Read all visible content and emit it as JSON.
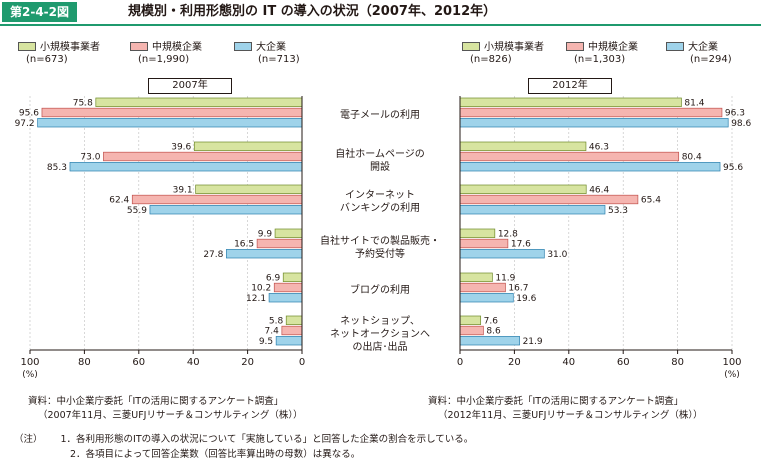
{
  "header": {
    "badge": "第2-4-2図",
    "title": "規模別・利用形態別の IT の導入の状況（2007年、2012年）"
  },
  "colors": {
    "small": "#d7e4a0",
    "medium": "#f5b5b0",
    "large": "#9fd3ea",
    "accent": "#1f9a6e"
  },
  "legend_2007": [
    {
      "label": "小規模事業者",
      "n": "(n=673)"
    },
    {
      "label": "中規模企業",
      "n": "(n=1,990)"
    },
    {
      "label": "大企業",
      "n": "(n=713)"
    }
  ],
  "legend_2012": [
    {
      "label": "小規模事業者",
      "n": "(n=826)"
    },
    {
      "label": "中規模企業",
      "n": "(n=1,303)"
    },
    {
      "label": "大企業",
      "n": "(n=294)"
    }
  ],
  "categories": [
    [
      "電子メールの利用"
    ],
    [
      "自社ホームページの",
      "開設"
    ],
    [
      "インターネット",
      "バンキングの利用"
    ],
    [
      "自社サイトでの製品販売・",
      "予約受付等"
    ],
    [
      "ブログの利用"
    ],
    [
      "ネットショップ、",
      "ネットオークションへ",
      "の出店･出品"
    ]
  ],
  "chart_data": [
    {
      "type": "bar",
      "orientation": "horizontal",
      "title": "2007年",
      "direction": "right-to-left",
      "categories": [
        "電子メールの利用",
        "自社ホームページの開設",
        "インターネットバンキングの利用",
        "自社サイトでの製品販売・予約受付等",
        "ブログの利用",
        "ネットショップ、ネットオークションへの出店･出品"
      ],
      "series": [
        {
          "name": "小規模事業者",
          "values": [
            75.8,
            39.6,
            39.1,
            9.9,
            6.9,
            5.8
          ]
        },
        {
          "name": "中規模企業",
          "values": [
            95.6,
            73.0,
            62.4,
            16.5,
            10.2,
            7.4
          ]
        },
        {
          "name": "大企業",
          "values": [
            97.2,
            85.3,
            55.9,
            27.8,
            12.1,
            9.5
          ]
        }
      ],
      "xlim": [
        0,
        100
      ],
      "ticks": [
        "100",
        "80",
        "60",
        "40",
        "20",
        "0"
      ],
      "unit": "(%)"
    },
    {
      "type": "bar",
      "orientation": "horizontal",
      "title": "2012年",
      "direction": "left-to-right",
      "categories": [
        "電子メールの利用",
        "自社ホームページの開設",
        "インターネットバンキングの利用",
        "自社サイトでの製品販売・予約受付等",
        "ブログの利用",
        "ネットショップ、ネットオークションへの出店･出品"
      ],
      "series": [
        {
          "name": "小規模事業者",
          "values": [
            81.4,
            46.3,
            46.4,
            12.8,
            11.9,
            7.6
          ]
        },
        {
          "name": "中規模企業",
          "values": [
            96.3,
            80.4,
            65.4,
            17.6,
            16.7,
            8.6
          ]
        },
        {
          "name": "大企業",
          "values": [
            98.6,
            95.6,
            53.3,
            31.0,
            19.6,
            21.9
          ]
        }
      ],
      "xlim": [
        0,
        100
      ],
      "ticks": [
        "0",
        "20",
        "40",
        "60",
        "80",
        "100"
      ],
      "unit": "(%)"
    }
  ],
  "sources": {
    "left_line1": "資料：中小企業庁委託「ITの活用に関するアンケート調査」",
    "left_line2": "（2007年11月、三菱UFJリサーチ＆コンサルティング（株））",
    "right_line1": "資料：中小企業庁委託「ITの活用に関するアンケート調査」",
    "right_line2": "（2012年11月、三菱UFJリサーチ＆コンサルティング（株））"
  },
  "notes": {
    "label": "（注）",
    "line1": "1．各利用形態のITの導入の状況について「実施している」と回答した企業の割合を示している。",
    "line2": "2．各項目によって回答企業数（回答比率算出時の母数）は異なる。"
  }
}
